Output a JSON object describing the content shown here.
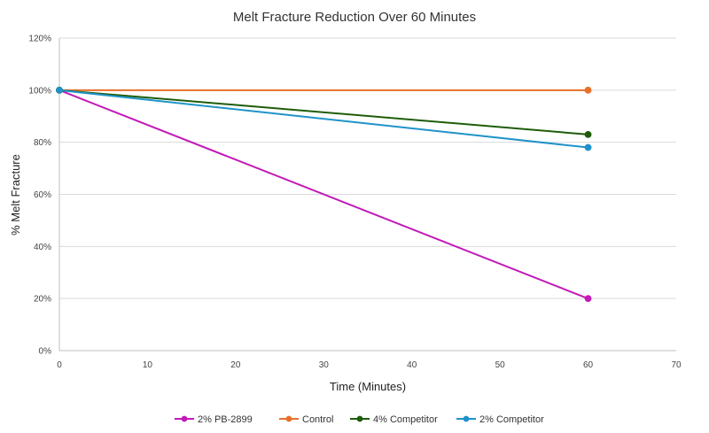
{
  "chart_data": {
    "type": "line",
    "title": "Melt Fracture Reduction Over 60 Minutes",
    "xlabel": "Time (Minutes)",
    "ylabel": "% Melt Fracture",
    "xlim": [
      0,
      70
    ],
    "ylim": [
      0,
      120
    ],
    "x_ticks": [
      0,
      10,
      20,
      30,
      40,
      50,
      60,
      70
    ],
    "y_ticks": [
      0,
      20,
      40,
      60,
      80,
      100,
      120
    ],
    "x_tick_labels": [
      "0",
      "10",
      "20",
      "30",
      "40",
      "50",
      "60",
      "70"
    ],
    "y_tick_labels": [
      "0%",
      "20%",
      "40%",
      "60%",
      "80%",
      "100%",
      "120%"
    ],
    "grid": "horizontal",
    "legend_position": "bottom",
    "series": [
      {
        "name": "2% PB-2899",
        "color": "#c21ab8",
        "x": [
          0,
          60
        ],
        "y": [
          100,
          20
        ]
      },
      {
        "name": "Control",
        "color": "#e8702a",
        "x": [
          0,
          60
        ],
        "y": [
          100,
          100
        ]
      },
      {
        "name": "4% Competitor",
        "color": "#1e5c0a",
        "x": [
          0,
          60
        ],
        "y": [
          100,
          83
        ]
      },
      {
        "name": "2% Competitor",
        "color": "#1f93c9",
        "x": [
          0,
          60
        ],
        "y": [
          100,
          78
        ]
      }
    ]
  }
}
